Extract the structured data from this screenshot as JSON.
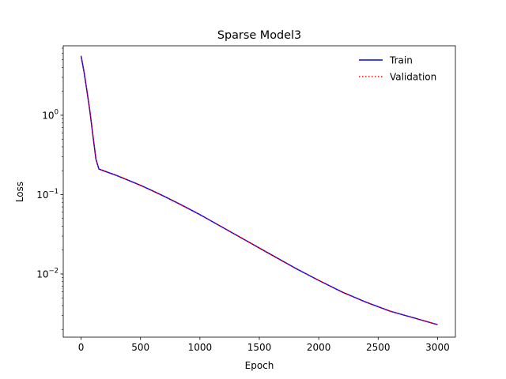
{
  "chart_data": {
    "type": "line",
    "title": "Sparse Model3",
    "xlabel": "Epoch",
    "ylabel": "Loss",
    "xlim": [
      -150,
      3150
    ],
    "ylim": [
      0.0016,
      7.5
    ],
    "yscale": "log",
    "grid": false,
    "legend": {
      "position": "top-right",
      "frame": false
    },
    "x_ticks": [
      {
        "value": 0,
        "label": "0"
      },
      {
        "value": 500,
        "label": "500"
      },
      {
        "value": 1000,
        "label": "1000"
      },
      {
        "value": 1500,
        "label": "1500"
      },
      {
        "value": 2000,
        "label": "2000"
      },
      {
        "value": 2500,
        "label": "2500"
      },
      {
        "value": 3000,
        "label": "3000"
      }
    ],
    "y_ticks": [
      {
        "value": 1,
        "base": "10",
        "exp": "0"
      },
      {
        "value": 0.1,
        "base": "10",
        "exp": "−1"
      },
      {
        "value": 0.01,
        "base": "10",
        "exp": "−2"
      }
    ],
    "series": [
      {
        "name": "Train",
        "color": "#0000ff",
        "style": "solid",
        "x": [
          0,
          25,
          50,
          75,
          100,
          125,
          150,
          200,
          300,
          400,
          500,
          600,
          700,
          800,
          900,
          1000,
          1200,
          1400,
          1600,
          1800,
          2000,
          2200,
          2400,
          2600,
          2800,
          3000
        ],
        "y": [
          5.6,
          3.5,
          2.0,
          1.1,
          0.55,
          0.28,
          0.21,
          0.197,
          0.174,
          0.151,
          0.131,
          0.112,
          0.095,
          0.08,
          0.067,
          0.056,
          0.038,
          0.0258,
          0.0175,
          0.0119,
          0.0083,
          0.0059,
          0.0044,
          0.0034,
          0.0028,
          0.0023
        ]
      },
      {
        "name": "Validation",
        "color": "#ff0000",
        "style": "dotted",
        "x": [
          0,
          25,
          50,
          75,
          100,
          125,
          150,
          200,
          300,
          400,
          500,
          600,
          700,
          800,
          900,
          1000,
          1200,
          1400,
          1600,
          1800,
          2000,
          2200,
          2400,
          2600,
          2800,
          3000
        ],
        "y": [
          5.6,
          3.5,
          2.0,
          1.1,
          0.55,
          0.28,
          0.21,
          0.197,
          0.174,
          0.151,
          0.131,
          0.112,
          0.095,
          0.08,
          0.067,
          0.056,
          0.038,
          0.0258,
          0.0175,
          0.0119,
          0.0083,
          0.0059,
          0.0044,
          0.0034,
          0.0028,
          0.0023
        ]
      }
    ]
  }
}
